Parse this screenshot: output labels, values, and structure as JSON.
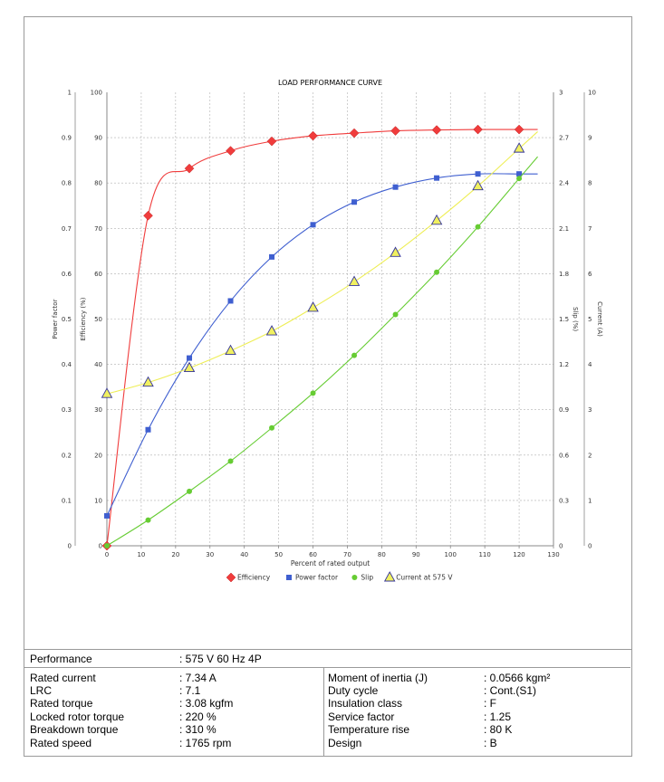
{
  "chart_data": {
    "type": "line",
    "title": "LOAD PERFORMANCE CURVE",
    "xlabel": "Percent of rated output",
    "xlim": [
      0,
      130
    ],
    "x_ticks": [
      "0",
      "10",
      "20",
      "30",
      "40",
      "50",
      "60",
      "70",
      "80",
      "90",
      "100",
      "110",
      "120",
      "130"
    ],
    "grid": true,
    "legend_position": "bottom",
    "axes": {
      "power_factor": {
        "label": "Power factor",
        "lim": [
          0,
          1
        ],
        "ticks": [
          "0",
          "0.1",
          "0.2",
          "0.3",
          "0.4",
          "0.5",
          "0.6",
          "0.7",
          "0.8",
          "0.9",
          "1"
        ]
      },
      "efficiency": {
        "label": "Efficiency (%)",
        "lim": [
          0,
          100
        ],
        "ticks": [
          "0",
          "10",
          "20",
          "30",
          "40",
          "50",
          "60",
          "70",
          "80",
          "90",
          "100"
        ]
      },
      "slip": {
        "label": "Slip (%)",
        "lim": [
          0,
          3
        ],
        "ticks": [
          "0",
          "0.3",
          "0.6",
          "0.9",
          "1.2",
          "1.5",
          "1.8",
          "2.1",
          "2.4",
          "2.7",
          "3"
        ]
      },
      "current": {
        "label": "Current (A)",
        "lim": [
          0,
          10
        ],
        "ticks": [
          "0",
          "1",
          "2",
          "3",
          "4",
          "5",
          "6",
          "7",
          "8",
          "9",
          "10"
        ]
      }
    },
    "series": [
      {
        "name": "Efficiency",
        "axis": "efficiency",
        "color": "#f03c3c",
        "marker": "diamond",
        "x": [
          0,
          12,
          24,
          36,
          48,
          60,
          72,
          84,
          96,
          108,
          120
        ],
        "y": [
          0,
          72.8,
          83.2,
          87.1,
          89.2,
          90.4,
          91.0,
          91.5,
          91.7,
          91.8,
          91.8
        ]
      },
      {
        "name": "Power factor",
        "axis": "power_factor",
        "color": "#3f5fd0",
        "marker": "square",
        "x": [
          0,
          12,
          24,
          36,
          48,
          60,
          72,
          84,
          96,
          108,
          120
        ],
        "y": [
          0.066,
          0.256,
          0.414,
          0.54,
          0.637,
          0.708,
          0.758,
          0.791,
          0.811,
          0.82,
          0.82
        ]
      },
      {
        "name": "Slip",
        "axis": "slip",
        "color": "#66cc33",
        "marker": "circle",
        "x": [
          0,
          12,
          24,
          36,
          48,
          60,
          72,
          84,
          96,
          108,
          120
        ],
        "y": [
          0,
          0.17,
          0.36,
          0.56,
          0.78,
          1.01,
          1.26,
          1.53,
          1.81,
          2.11,
          2.43
        ]
      },
      {
        "name": "Current at 575 V",
        "axis": "current",
        "color": "#f0f060",
        "marker": "triangle",
        "x": [
          0,
          12,
          24,
          36,
          48,
          60,
          72,
          84,
          96,
          108,
          120
        ],
        "y": [
          3.35,
          3.6,
          3.92,
          4.3,
          4.73,
          5.25,
          5.82,
          6.46,
          7.17,
          7.93,
          8.76
        ]
      }
    ]
  },
  "specs": {
    "performance_label": "Performance",
    "performance_value": ": 575 V 60 Hz 4P",
    "left": [
      {
        "label": "Rated current",
        "value": ": 7.34 A"
      },
      {
        "label": "LRC",
        "value": ": 7.1"
      },
      {
        "label": "Rated torque",
        "value": ": 3.08 kgfm"
      },
      {
        "label": "Locked rotor torque",
        "value": ": 220 %"
      },
      {
        "label": "Breakdown torque",
        "value": ": 310 %"
      },
      {
        "label": "Rated speed",
        "value": ": 1765 rpm"
      }
    ],
    "right": [
      {
        "label": "Moment of inertia (J)",
        "value": ": 0.0566 kgm²"
      },
      {
        "label": "Duty cycle",
        "value": ": Cont.(S1)"
      },
      {
        "label": "Insulation class",
        "value": ": F"
      },
      {
        "label": "Service factor",
        "value": ": 1.25"
      },
      {
        "label": "Temperature rise",
        "value": ": 80 K"
      },
      {
        "label": "Design",
        "value": ": B"
      }
    ]
  }
}
